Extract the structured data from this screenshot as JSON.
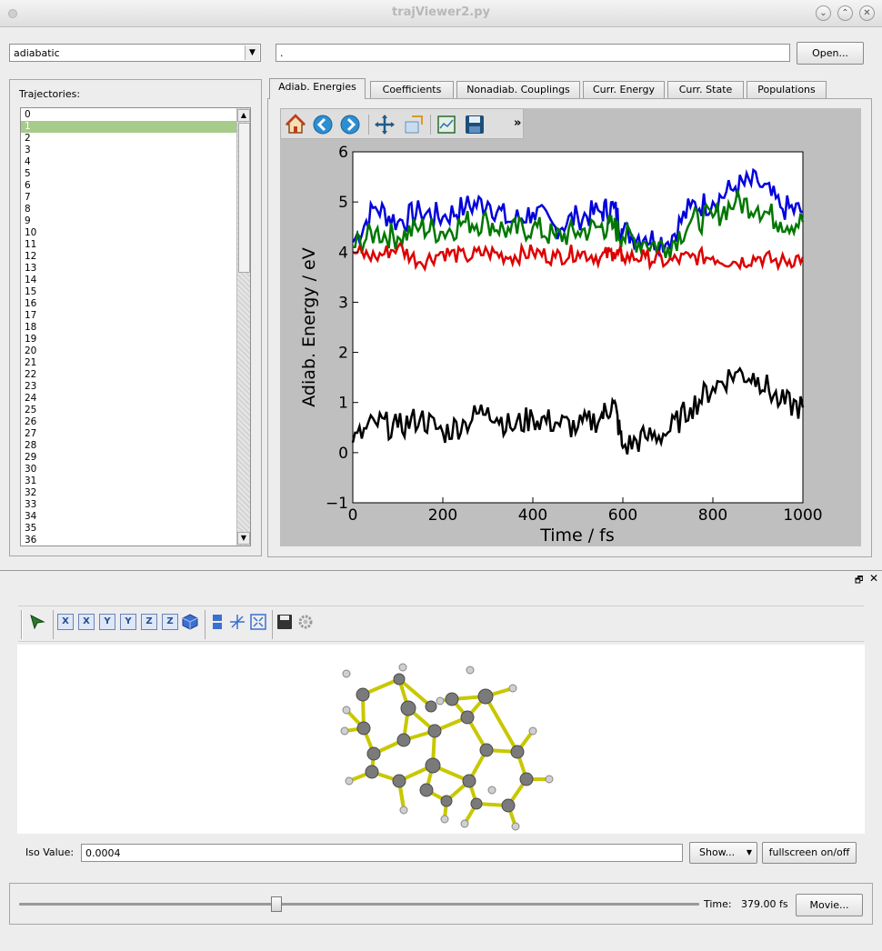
{
  "window": {
    "title": "trajViewer2.py"
  },
  "top": {
    "mode_combo": "adiabatic",
    "path_field": ".",
    "open_button": "Open..."
  },
  "trajectories": {
    "label": "Trajectories:",
    "items": [
      "0",
      "1",
      "2",
      "3",
      "4",
      "5",
      "6",
      "7",
      "8",
      "9",
      "10",
      "11",
      "12",
      "13",
      "14",
      "15",
      "16",
      "17",
      "18",
      "19",
      "20",
      "21",
      "22",
      "23",
      "24",
      "25",
      "26",
      "27",
      "28",
      "29",
      "30",
      "31",
      "32",
      "33",
      "34",
      "35",
      "36"
    ],
    "selected": "1"
  },
  "tabs": [
    {
      "label": "Adiab. Energies",
      "active": true
    },
    {
      "label": "Coefficients",
      "active": false
    },
    {
      "label": "Nonadiab. Couplings",
      "active": false
    },
    {
      "label": "Curr. Energy",
      "active": false
    },
    {
      "label": "Curr. State",
      "active": false
    },
    {
      "label": "Populations",
      "active": false
    }
  ],
  "plot_toolbar": {
    "icons": [
      "home-icon",
      "back-icon",
      "forward-icon",
      "pan-icon",
      "zoom-icon",
      "subplots-icon",
      "save-icon"
    ],
    "overflow": "»"
  },
  "chart_data": {
    "type": "line",
    "title": "",
    "xlabel": "Time / fs",
    "ylabel": "Adiab. Energy / eV",
    "xlim": [
      0,
      1000
    ],
    "ylim": [
      -1,
      6
    ],
    "xticks": [
      "0",
      "200",
      "400",
      "600",
      "800",
      "1000"
    ],
    "yticks": [
      "−1",
      "0",
      "1",
      "2",
      "3",
      "4",
      "5",
      "6"
    ],
    "grid": false,
    "series": [
      {
        "color": "#0000dd",
        "x": [
          0,
          50,
          100,
          150,
          200,
          250,
          300,
          350,
          400,
          450,
          500,
          550,
          580,
          600,
          650,
          700,
          750,
          800,
          850,
          900,
          950,
          1000
        ],
        "values": [
          4.2,
          4.9,
          4.6,
          4.8,
          4.7,
          4.9,
          5.0,
          4.6,
          4.8,
          4.5,
          4.7,
          4.8,
          4.9,
          4.4,
          4.3,
          4.2,
          4.9,
          5.0,
          5.3,
          5.4,
          4.9,
          4.8
        ]
      },
      {
        "color": "#007700",
        "x": [
          0,
          50,
          100,
          150,
          200,
          250,
          300,
          350,
          400,
          450,
          500,
          550,
          580,
          600,
          650,
          700,
          750,
          800,
          850,
          900,
          950,
          1000
        ],
        "values": [
          4.1,
          4.4,
          4.3,
          4.5,
          4.4,
          4.6,
          4.6,
          4.4,
          4.5,
          4.3,
          4.4,
          4.5,
          4.5,
          4.3,
          4.2,
          4.1,
          4.6,
          4.7,
          5.0,
          4.9,
          4.6,
          4.6
        ]
      },
      {
        "color": "#dd0000",
        "x": [
          0,
          50,
          100,
          150,
          200,
          250,
          300,
          350,
          400,
          450,
          500,
          550,
          580,
          600,
          650,
          700,
          750,
          800,
          850,
          900,
          950,
          1000
        ],
        "values": [
          4.0,
          3.9,
          4.1,
          3.8,
          4.0,
          3.9,
          4.0,
          3.9,
          4.0,
          3.9,
          4.0,
          3.9,
          4.0,
          3.9,
          3.9,
          3.8,
          3.9,
          3.9,
          3.8,
          3.9,
          3.8,
          3.9
        ]
      },
      {
        "color": "#000000",
        "x": [
          0,
          50,
          100,
          150,
          200,
          250,
          300,
          350,
          400,
          450,
          500,
          550,
          580,
          600,
          650,
          700,
          750,
          800,
          850,
          900,
          950,
          1000
        ],
        "values": [
          0.2,
          0.6,
          0.5,
          0.7,
          0.4,
          0.6,
          0.9,
          0.5,
          0.7,
          0.6,
          0.5,
          0.7,
          1.0,
          0.1,
          0.3,
          0.4,
          0.9,
          1.3,
          1.6,
          1.5,
          1.0,
          0.9
        ]
      }
    ]
  },
  "vtk_toolbar": {
    "icons": [
      "pick-icon",
      "x-axis-icon",
      "x-axis-reverse-icon",
      "y-axis-icon",
      "y-axis-reverse-icon",
      "z-axis-icon",
      "z-axis-reverse-icon",
      "cube-icon",
      "parallel-projection-icon",
      "axes-icon",
      "fit-view-icon",
      "save-image-icon",
      "settings-icon"
    ],
    "labels": {
      "x1": "X",
      "x2": "X",
      "y1": "Y",
      "y2": "Y",
      "z1": "Z",
      "z2": "Z"
    }
  },
  "iso": {
    "label": "Iso Value:",
    "value": "0.0004",
    "show_button": "Show...",
    "fullscreen_button": "fullscreen on/off"
  },
  "time": {
    "label": "Time:",
    "value": "379.00 fs",
    "slider_fraction": 0.379,
    "movie_button": "Movie..."
  },
  "dock": {
    "float_icon": "float-icon",
    "close_icon": "close-icon"
  },
  "colors": {
    "selection": "#a6cb8a",
    "bond": "#c8c800",
    "atom": "#7a7a7a"
  }
}
